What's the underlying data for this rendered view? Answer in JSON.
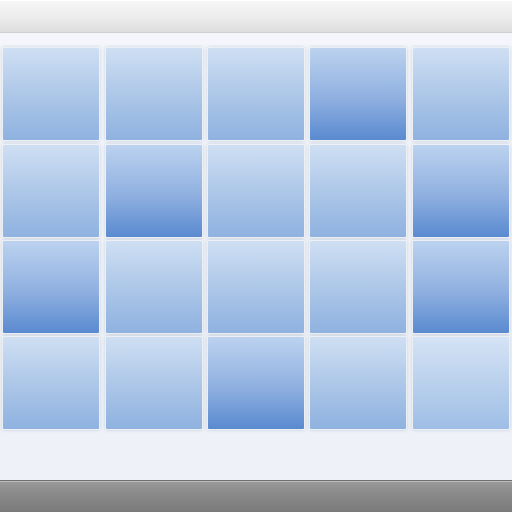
{
  "colors": {
    "title_bar": "#ececec",
    "content_background": "#f2f4f9",
    "tile_light_top": "#cfdff3",
    "tile_light_bottom": "#8fb2e0",
    "tile_dark_top": "#bcd2ef",
    "tile_dark_bottom": "#5a8ad0",
    "bottom_bar": "#8a8a8a"
  },
  "grid": {
    "rows": 4,
    "columns": 5,
    "tiles": [
      {
        "shade": "light"
      },
      {
        "shade": "light"
      },
      {
        "shade": "light"
      },
      {
        "shade": "dark"
      },
      {
        "shade": "light"
      },
      {
        "shade": "light"
      },
      {
        "shade": "dark"
      },
      {
        "shade": "light"
      },
      {
        "shade": "light"
      },
      {
        "shade": "dark"
      },
      {
        "shade": "dark"
      },
      {
        "shade": "light"
      },
      {
        "shade": "light"
      },
      {
        "shade": "light"
      },
      {
        "shade": "dark"
      },
      {
        "shade": "light"
      },
      {
        "shade": "light"
      },
      {
        "shade": "dark"
      },
      {
        "shade": "light"
      },
      {
        "shade": "pale"
      }
    ]
  }
}
